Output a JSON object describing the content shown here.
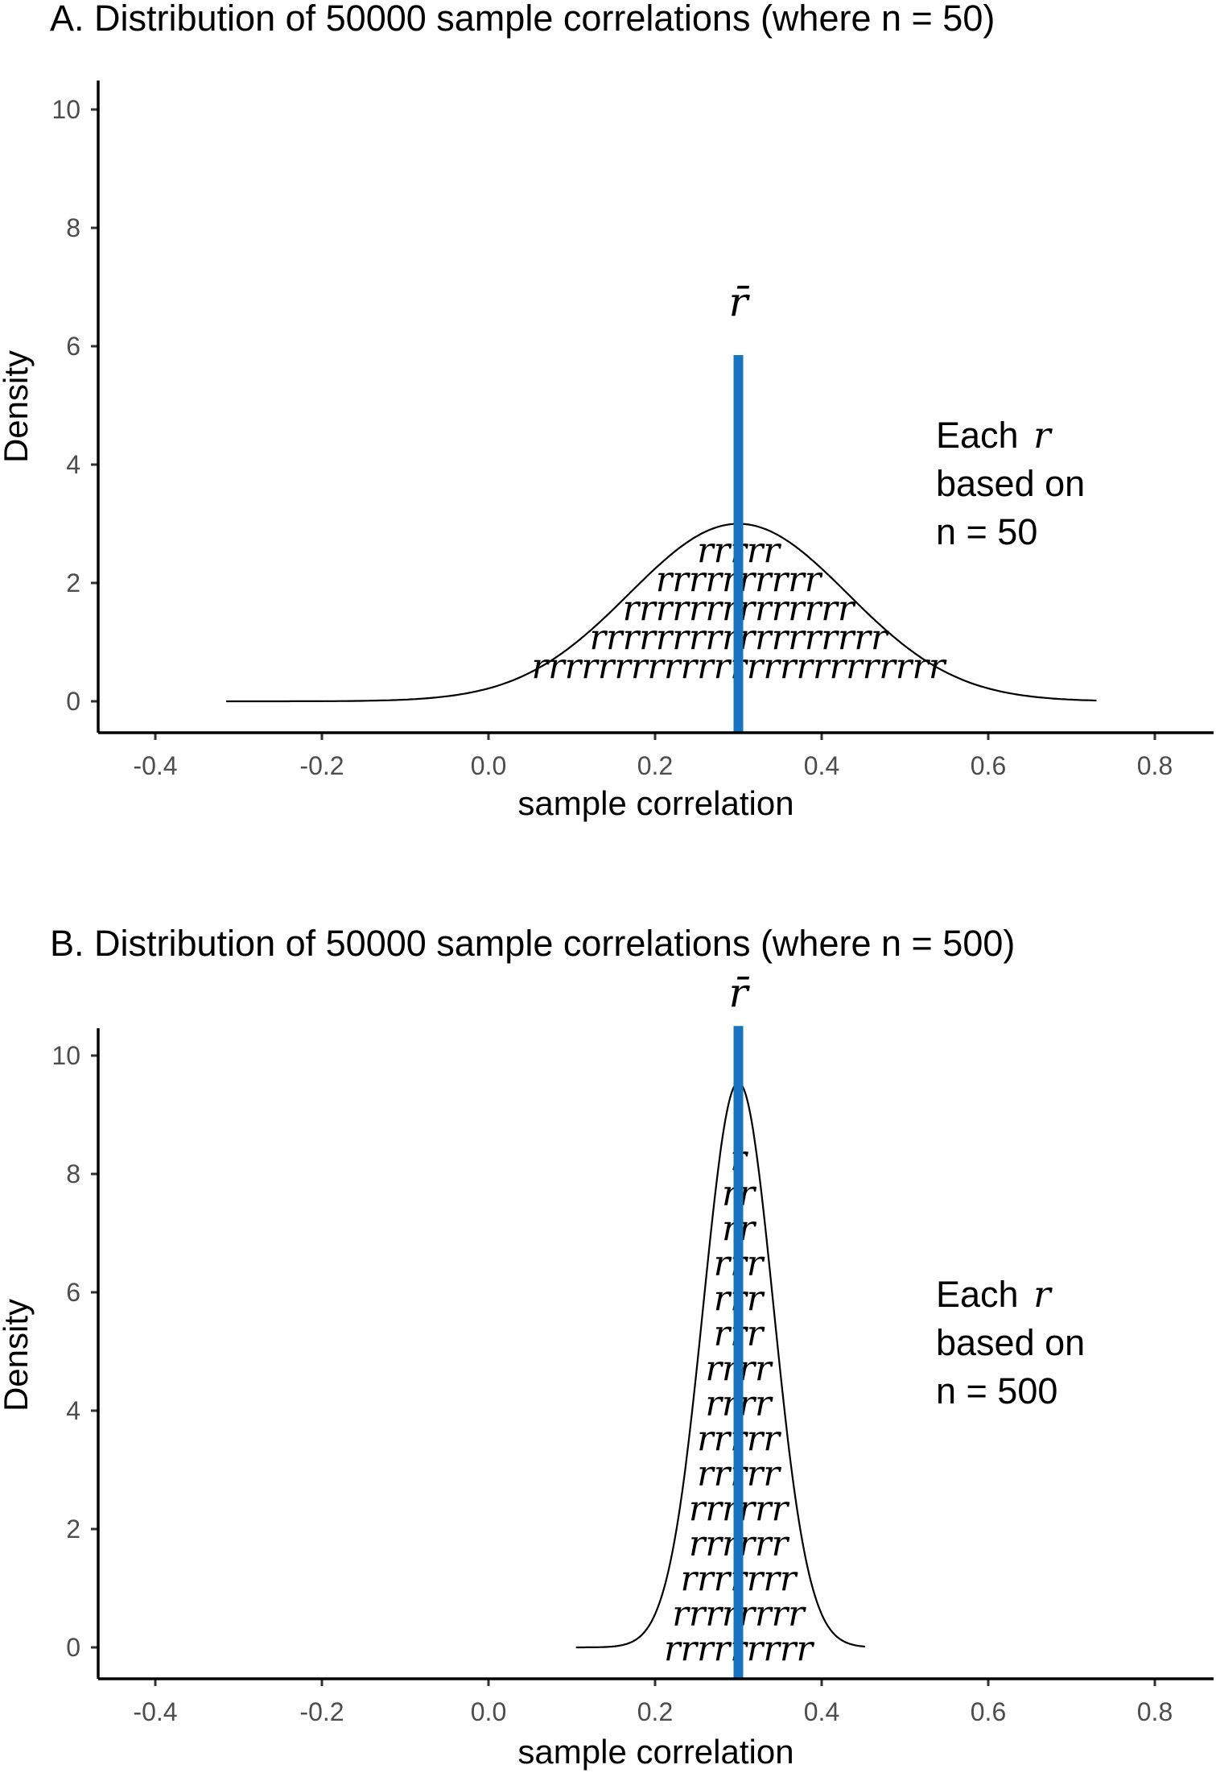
{
  "chart_data": [
    {
      "type": "area",
      "title": "A. Distribution of 50000 sample correlations (where n = 50)",
      "xlabel": "sample correlation",
      "ylabel": "Density",
      "xlim": [
        -0.45,
        0.85
      ],
      "ylim": [
        0,
        10.5
      ],
      "xticks": [
        -0.4,
        -0.2,
        0.0,
        0.2,
        0.4,
        0.6,
        0.8
      ],
      "xtick_labels": [
        "-0.4",
        "-0.2",
        "0.0",
        "0.2",
        "0.4",
        "0.6",
        "0.8"
      ],
      "yticks": [
        0,
        2,
        4,
        6,
        8,
        10
      ],
      "ytick_labels": [
        "0",
        "2",
        "4",
        "6",
        "8",
        "10"
      ],
      "grid": false,
      "density": {
        "mean": 0.3,
        "sd": 0.131,
        "peak": 3.0,
        "range": [
          -0.315,
          0.73
        ]
      },
      "mean_line": {
        "x": 0.3,
        "y_top": 5.85,
        "color": "#1874c1"
      },
      "mean_label": "r̄",
      "glyph_rows": [
        "rrrrr",
        "rrrrrrrrrr",
        "rrrrrrrrrrrrrr",
        "rrrrrrrrrrrrrrrrrr",
        "rrrrrrrrrrrrrrrrrrrrrrrrr"
      ],
      "annotation": [
        "Each r",
        "based on",
        "n = 50"
      ]
    },
    {
      "type": "area",
      "title": "B. Distribution of 50000 sample correlations (where n = 500)",
      "xlabel": "sample correlation",
      "ylabel": "Density",
      "xlim": [
        -0.45,
        0.85
      ],
      "ylim": [
        0,
        10.5
      ],
      "xticks": [
        -0.4,
        -0.2,
        0.0,
        0.2,
        0.4,
        0.6,
        0.8
      ],
      "xtick_labels": [
        "-0.4",
        "-0.2",
        "0.0",
        "0.2",
        "0.4",
        "0.6",
        "0.8"
      ],
      "yticks": [
        0,
        2,
        4,
        6,
        8,
        10
      ],
      "ytick_labels": [
        "0",
        "2",
        "4",
        "6",
        "8",
        "10"
      ],
      "grid": false,
      "density": {
        "mean": 0.3,
        "sd": 0.042,
        "peak": 9.55,
        "range": [
          0.105,
          0.452
        ]
      },
      "mean_line": {
        "x": 0.3,
        "y_top": 10.5,
        "color": "#1874c1"
      },
      "mean_label": "r̄",
      "glyph_rows": [
        "r",
        "rr",
        "rr",
        "rrr",
        "rrr",
        "rrr",
        "rrrr",
        "rrrr",
        "rrrrr",
        "rrrrr",
        "rrrrrr",
        "rrrrrr",
        "rrrrrrr",
        "rrrrrrrr",
        "rrrrrrrrr"
      ],
      "annotation": [
        "Each r",
        "based on",
        "n = 500"
      ]
    }
  ]
}
